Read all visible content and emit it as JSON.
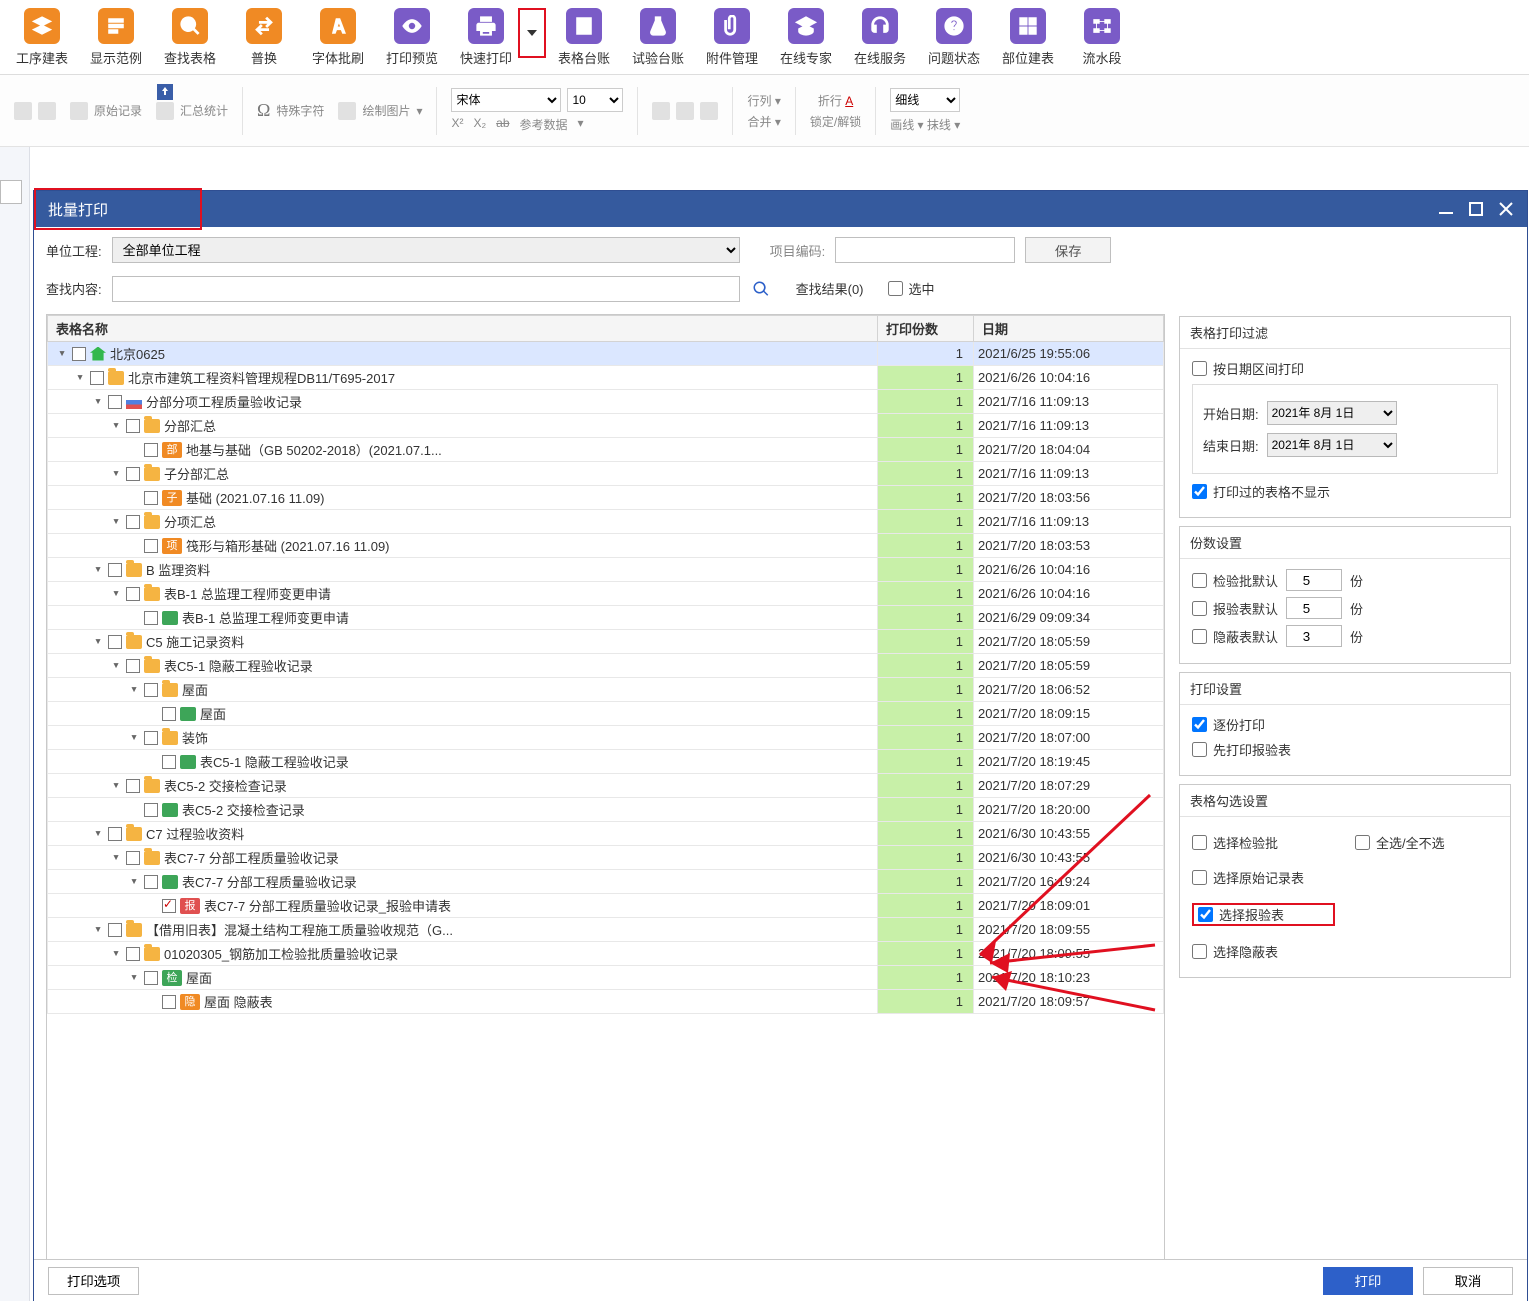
{
  "toolbar": [
    {
      "label": "工序建表",
      "color": "orange",
      "icon": "layers"
    },
    {
      "label": "显示范例",
      "color": "orange",
      "icon": "fan"
    },
    {
      "label": "查找表格",
      "color": "orange",
      "icon": "search"
    },
    {
      "label": "普换",
      "color": "orange",
      "icon": "swap"
    },
    {
      "label": "字体批刷",
      "color": "orange",
      "icon": "font"
    },
    {
      "label": "打印预览",
      "color": "purple",
      "icon": "eye"
    },
    {
      "label": "快速打印",
      "color": "purple",
      "icon": "print"
    },
    {
      "label": "表格台账",
      "color": "purple",
      "icon": "ledger"
    },
    {
      "label": "试验台账",
      "color": "purple",
      "icon": "flask"
    },
    {
      "label": "附件管理",
      "color": "purple",
      "icon": "clip"
    },
    {
      "label": "在线专家",
      "color": "purple",
      "icon": "grad"
    },
    {
      "label": "在线服务",
      "color": "purple",
      "icon": "headset"
    },
    {
      "label": "问题状态",
      "color": "purple",
      "icon": "question"
    },
    {
      "label": "部位建表",
      "color": "purple",
      "icon": "grid"
    },
    {
      "label": "流水段",
      "color": "purple",
      "icon": "flow"
    }
  ],
  "ribbon2": {
    "original": "原始记录",
    "special": "特殊字符",
    "font": "宋体",
    "size": "10",
    "row": "行列",
    "merge": "合并",
    "wrap": "折行",
    "lock": "锁定/解锁",
    "stat": "汇总统计",
    "draw": "绘制图片",
    "sup": "X²",
    "sub": "X₂",
    "strike": "ab",
    "ref": "参考数据",
    "line_style": "细线",
    "draw_line": "画线",
    "erase": "抹线"
  },
  "modal": {
    "title": "批量打印",
    "unit_label": "单位工程:",
    "unit_value": "全部单位工程",
    "proj_code_label": "项目编码:",
    "save": "保存",
    "search_label": "查找内容:",
    "results_label": "查找结果(0)",
    "select_label": "选中",
    "col_name": "表格名称",
    "col_copies": "打印份数",
    "col_date": "日期",
    "print_options": "打印选项",
    "print": "打印",
    "cancel": "取消"
  },
  "rows": [
    {
      "d": 0,
      "e": "▾",
      "c": 0,
      "i": "home",
      "t": "北京0625",
      "n": "1",
      "dt": "2021/6/25 19:55:06",
      "sel": 1
    },
    {
      "d": 1,
      "e": "▾",
      "c": 0,
      "i": "folder",
      "t": "北京市建筑工程资料管理规程DB11/T695-2017",
      "n": "1",
      "dt": "2021/6/26 10:04:16"
    },
    {
      "d": 2,
      "e": "▾",
      "c": 0,
      "i": "chart",
      "t": "分部分项工程质量验收记录",
      "n": "1",
      "dt": "2021/7/16 11:09:13"
    },
    {
      "d": 3,
      "e": "▾",
      "c": 0,
      "i": "folder",
      "t": "分部汇总",
      "n": "1",
      "dt": "2021/7/16 11:09:13"
    },
    {
      "d": 4,
      "e": "",
      "c": 0,
      "b": "部",
      "bc": "bu",
      "t": "地基与基础（GB 50202-2018）(2021.07.1...",
      "n": "1",
      "dt": "2021/7/20 18:04:04"
    },
    {
      "d": 3,
      "e": "▾",
      "c": 0,
      "i": "folder",
      "t": "子分部汇总",
      "n": "1",
      "dt": "2021/7/16 11:09:13"
    },
    {
      "d": 4,
      "e": "",
      "c": 0,
      "b": "子",
      "bc": "zi",
      "t": "基础 (2021.07.16 11.09)",
      "n": "1",
      "dt": "2021/7/20 18:03:56"
    },
    {
      "d": 3,
      "e": "▾",
      "c": 0,
      "i": "folder",
      "t": "分项汇总",
      "n": "1",
      "dt": "2021/7/16 11:09:13"
    },
    {
      "d": 4,
      "e": "",
      "c": 0,
      "b": "项",
      "bc": "xiang",
      "t": "筏形与箱形基础 (2021.07.16 11.09)",
      "n": "1",
      "dt": "2021/7/20 18:03:53"
    },
    {
      "d": 2,
      "e": "▾",
      "c": 0,
      "i": "folder",
      "t": "B 监理资料",
      "n": "1",
      "dt": "2021/6/26 10:04:16"
    },
    {
      "d": 3,
      "e": "▾",
      "c": 0,
      "i": "folder",
      "t": "表B-1 总监理工程师变更申请",
      "n": "1",
      "dt": "2021/6/26 10:04:16"
    },
    {
      "d": 4,
      "e": "",
      "c": 0,
      "i": "xls",
      "t": "表B-1 总监理工程师变更申请",
      "n": "1",
      "dt": "2021/6/29 09:09:34"
    },
    {
      "d": 2,
      "e": "▾",
      "c": 0,
      "i": "folder",
      "t": "C5 施工记录资料",
      "n": "1",
      "dt": "2021/7/20 18:05:59"
    },
    {
      "d": 3,
      "e": "▾",
      "c": 0,
      "i": "folder",
      "t": "表C5-1 隐蔽工程验收记录",
      "n": "1",
      "dt": "2021/7/20 18:05:59"
    },
    {
      "d": 4,
      "e": "▾",
      "c": 0,
      "i": "folder",
      "t": "屋面",
      "n": "1",
      "dt": "2021/7/20 18:06:52"
    },
    {
      "d": 5,
      "e": "",
      "c": 0,
      "i": "xls",
      "t": "屋面",
      "n": "1",
      "dt": "2021/7/20 18:09:15"
    },
    {
      "d": 4,
      "e": "▾",
      "c": 0,
      "i": "folder",
      "t": "装饰",
      "n": "1",
      "dt": "2021/7/20 18:07:00"
    },
    {
      "d": 5,
      "e": "",
      "c": 0,
      "i": "xls",
      "t": "表C5-1 隐蔽工程验收记录",
      "n": "1",
      "dt": "2021/7/20 18:19:45"
    },
    {
      "d": 3,
      "e": "▾",
      "c": 0,
      "i": "folder",
      "t": "表C5-2 交接检查记录",
      "n": "1",
      "dt": "2021/7/20 18:07:29"
    },
    {
      "d": 4,
      "e": "",
      "c": 0,
      "i": "xls",
      "t": "表C5-2 交接检查记录",
      "n": "1",
      "dt": "2021/7/20 18:20:00"
    },
    {
      "d": 2,
      "e": "▾",
      "c": 0,
      "i": "folder",
      "t": "C7 过程验收资料",
      "n": "1",
      "dt": "2021/6/30 10:43:55"
    },
    {
      "d": 3,
      "e": "▾",
      "c": 0,
      "i": "folder",
      "t": "表C7-7 分部工程质量验收记录",
      "n": "1",
      "dt": "2021/6/30 10:43:55"
    },
    {
      "d": 4,
      "e": "▾",
      "c": 0,
      "i": "xls",
      "t": "表C7-7 分部工程质量验收记录",
      "n": "1",
      "dt": "2021/7/20 16:19:24"
    },
    {
      "d": 5,
      "e": "",
      "c": 1,
      "b": "报",
      "bc": "bao",
      "t": "表C7-7 分部工程质量验收记录_报验申请表",
      "n": "1",
      "dt": "2021/7/20 18:09:01"
    },
    {
      "d": 2,
      "e": "▾",
      "c": 0,
      "i": "folder",
      "t": "【借用旧表】混凝土结构工程施工质量验收规范（G...",
      "n": "1",
      "dt": "2021/7/20 18:09:55"
    },
    {
      "d": 3,
      "e": "▾",
      "c": 0,
      "i": "folder",
      "t": "01020305_钢筋加工检验批质量验收记录",
      "n": "1",
      "dt": "2021/7/20 18:09:55"
    },
    {
      "d": 4,
      "e": "▾",
      "c": 0,
      "b": "检",
      "bc": "jian",
      "t": "屋面",
      "n": "1",
      "dt": "2021/7/20 18:10:23"
    },
    {
      "d": 5,
      "e": "",
      "c": 0,
      "b": "隐",
      "bc": "yin",
      "t": "屋面 隐蔽表",
      "n": "1",
      "dt": "2021/7/20 18:09:57"
    }
  ],
  "right": {
    "filter_title": "表格打印过滤",
    "by_date": "按日期区间打印",
    "start": "开始日期:",
    "end": "结束日期:",
    "date_val": "2021年 8月  1日",
    "hide_printed": "打印过的表格不显示",
    "copies_title": "份数设置",
    "copies": [
      {
        "l": "检验批默认",
        "v": "5"
      },
      {
        "l": "报验表默认",
        "v": "5"
      },
      {
        "l": "隐蔽表默认",
        "v": "3"
      }
    ],
    "unit": "份",
    "print_title": "打印设置",
    "per_copy": "逐份打印",
    "first_bao": "先打印报验表",
    "sel_title": "表格勾选设置",
    "sel_jian": "选择检验批",
    "sel_orig": "选择原始记录表",
    "sel_bao": "选择报验表",
    "sel_yin": "选择隐蔽表",
    "sel_all": "全选/全不选"
  }
}
